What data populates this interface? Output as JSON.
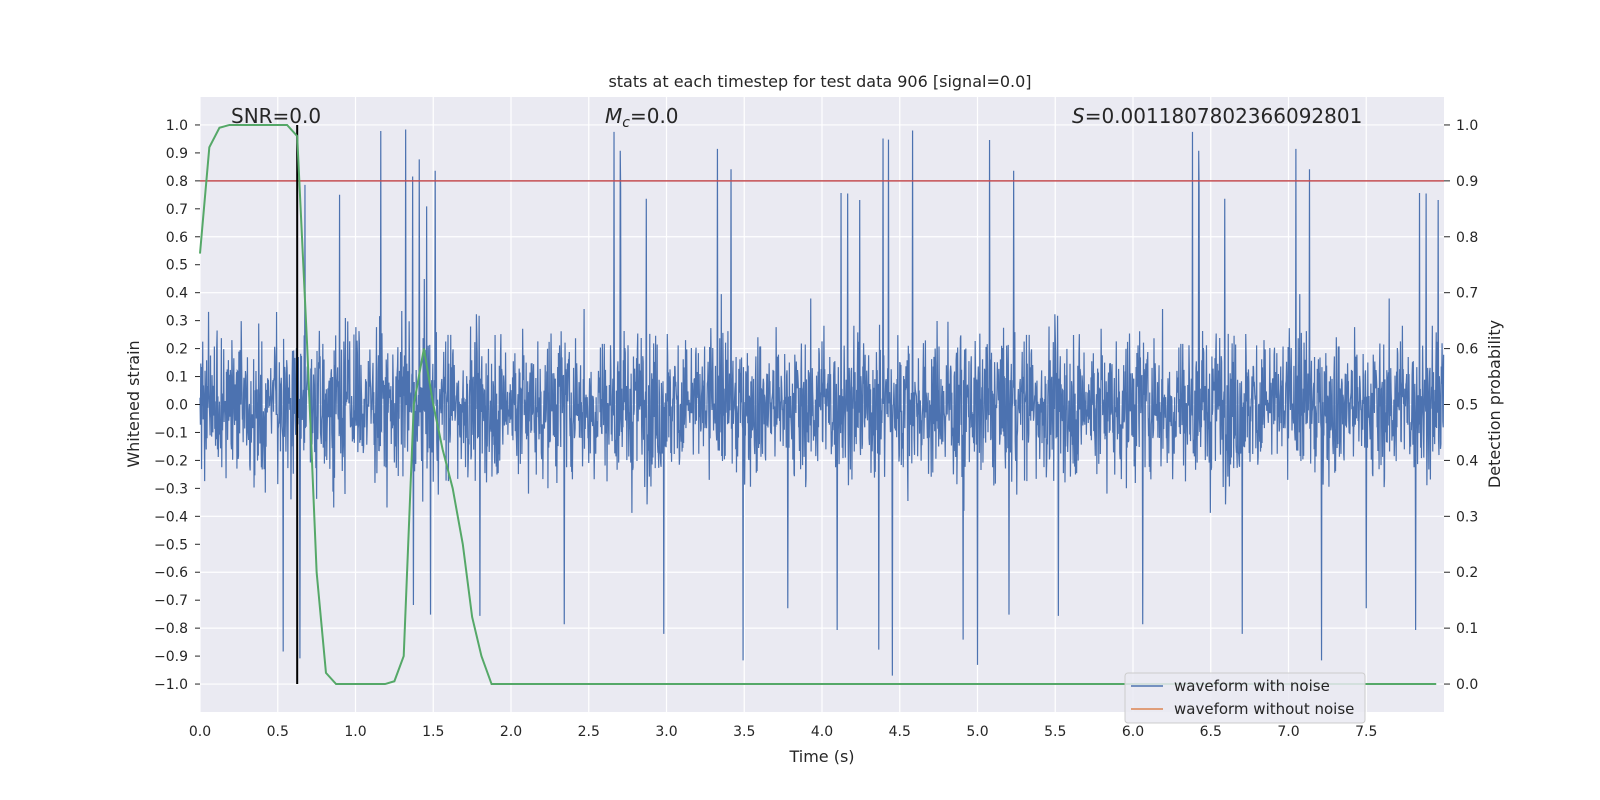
{
  "chart_data": {
    "type": "line",
    "title": "stats at each timestep for test data 906 [signal=0.0]",
    "xlabel": "Time (s)",
    "ylabel": "Whitened strain",
    "y2label": "Detection probability",
    "xlim": [
      0.0,
      8.0
    ],
    "ylim": [
      -1.1,
      1.1
    ],
    "y2lim": [
      -0.05,
      1.05
    ],
    "xticks": [
      "0.0",
      "0.5",
      "1.0",
      "1.5",
      "2.0",
      "2.5",
      "3.0",
      "3.5",
      "4.0",
      "4.5",
      "5.0",
      "5.5",
      "6.0",
      "6.5",
      "7.0",
      "7.5"
    ],
    "yticks": [
      "1.0",
      "0.9",
      "0.8",
      "0.7",
      "0.6",
      "0.5",
      "0.4",
      "0.3",
      "0.2",
      "0.1",
      "0.0",
      "−0.1",
      "−0.2",
      "−0.3",
      "−0.4",
      "−0.5",
      "−0.6",
      "−0.7",
      "−0.8",
      "−0.9",
      "−1.0"
    ],
    "y2ticks": [
      "1.0",
      "0.9",
      "0.8",
      "0.7",
      "0.6",
      "0.5",
      "0.4",
      "0.3",
      "0.2",
      "0.1",
      "0.0"
    ],
    "annotations": {
      "snr": "SNR=0.0",
      "mc_symbol": "M",
      "mc_sub": "c",
      "mc_value": "=0.0",
      "s_symbol": "S",
      "s_value": "=0.0011807802366092801"
    },
    "threshold": {
      "value": 0.9,
      "axis": "y2",
      "color": "#c44e52"
    },
    "marker_time": 0.625,
    "series": [
      {
        "name": "waveform with noise",
        "color": "#4c72b0",
        "kind": "noise",
        "envelope": 0.55
      },
      {
        "name": "waveform without noise",
        "color": "#dd8452",
        "values": []
      },
      {
        "name": "detection probability",
        "color": "#55a868",
        "axis": "y2",
        "x": [
          0.0,
          0.06,
          0.125,
          0.19,
          0.25,
          0.31,
          0.375,
          0.44,
          0.5,
          0.56,
          0.625,
          0.69,
          0.75,
          0.81,
          0.875,
          0.94,
          1.0,
          1.06,
          1.125,
          1.19,
          1.25,
          1.31,
          1.375,
          1.44,
          1.5,
          1.56,
          1.625,
          1.69,
          1.75,
          1.81,
          1.875,
          1.94,
          2.0,
          2.5,
          3.0,
          4.0,
          5.0,
          6.0,
          6.5,
          7.0,
          7.5,
          7.95
        ],
        "values": [
          0.77,
          0.96,
          0.995,
          1.0,
          1.0,
          1.0,
          1.0,
          1.0,
          1.0,
          1.0,
          0.98,
          0.6,
          0.2,
          0.02,
          0.0,
          0.0,
          0.0,
          0.0,
          0.0,
          0.0,
          0.005,
          0.05,
          0.5,
          0.6,
          0.5,
          0.42,
          0.35,
          0.25,
          0.12,
          0.05,
          0.0,
          0.0,
          0.0,
          0.0,
          0.0,
          0.0,
          0.0,
          0.0,
          0.0,
          0.0,
          0.0,
          0.0
        ]
      }
    ],
    "legend": {
      "location": "lower-right",
      "entries": [
        "waveform with noise",
        "waveform without noise"
      ]
    },
    "colors": {
      "background": "#eaeaf2",
      "grid": "#ffffff",
      "marker": "#000000"
    }
  }
}
